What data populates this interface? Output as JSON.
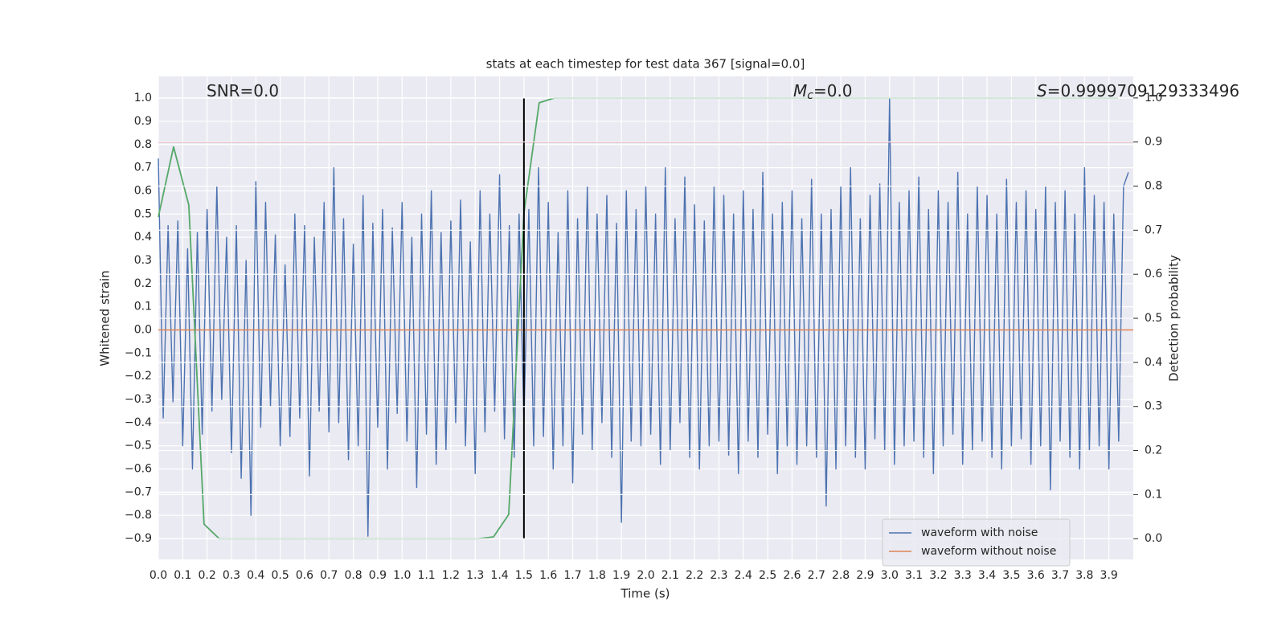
{
  "chart_data": {
    "type": "line",
    "title": "stats at each timestep for test data 367 [signal=0.0]",
    "xlabel": "Time (s)",
    "ylabel": "Whitened strain",
    "y2label": "Detection probability",
    "xlim": [
      0,
      4.0
    ],
    "ylim": [
      -0.99,
      1.094
    ],
    "y2lim": [
      -0.047,
      1.049
    ],
    "grid": true,
    "legend": "lower right",
    "xticks": [
      {
        "value": 0,
        "label": "0.0"
      },
      0.1,
      0.2,
      0.3,
      0.4,
      0.5,
      0.6,
      0.7,
      0.8,
      0.9,
      {
        "value": 1,
        "label": "1.0"
      },
      1.1,
      1.2,
      1.3,
      1.4,
      1.5,
      1.6,
      1.7,
      1.8,
      1.9,
      {
        "value": 2,
        "label": "2.0"
      },
      2.1,
      2.2,
      2.3,
      2.4,
      2.5,
      2.6,
      2.7,
      2.8,
      2.9,
      {
        "value": 3,
        "label": "3.0"
      },
      3.1,
      3.2,
      3.3,
      3.4,
      3.5,
      3.6,
      3.7,
      3.8,
      3.9
    ],
    "yticks": [
      {
        "value": -0.9,
        "label": "−0.9"
      },
      {
        "value": -0.8,
        "label": "−0.8"
      },
      {
        "value": -0.7,
        "label": "−0.7"
      },
      {
        "value": -0.6,
        "label": "−0.6"
      },
      {
        "value": -0.5,
        "label": "−0.5"
      },
      {
        "value": -0.4,
        "label": "−0.4"
      },
      {
        "value": -0.3,
        "label": "−0.3"
      },
      {
        "value": -0.2,
        "label": "−0.2"
      },
      {
        "value": -0.1,
        "label": "−0.1"
      },
      {
        "value": 0,
        "label": "0.0"
      },
      0.1,
      0.2,
      0.3,
      0.4,
      0.5,
      0.6,
      0.7,
      0.8,
      0.9,
      {
        "value": 1,
        "label": "1.0"
      }
    ],
    "y2ticks": [
      {
        "value": 0,
        "label": "0.0"
      },
      0.1,
      0.2,
      0.3,
      0.4,
      0.5,
      0.6,
      0.7,
      0.8,
      0.9,
      {
        "value": 1,
        "label": "1.0"
      }
    ],
    "annotations": [
      {
        "text": "SNR=0.0"
      },
      {
        "symbol": "M",
        "subscript": "c",
        "text": "=0.0"
      },
      {
        "symbol": "S",
        "text": "=0.9999709129333496"
      }
    ],
    "hlines": [
      {
        "y": 0.9,
        "axis": "y2",
        "color": "#c44e52"
      }
    ],
    "vlines": [
      {
        "x": 1.5,
        "ymin": 0,
        "ymax": 1,
        "axis": "y2",
        "color": "#000000"
      }
    ],
    "series": [
      {
        "name": "waveform with noise",
        "color": "#4c72b0",
        "x": [
          0,
          0.02,
          0.04,
          0.06,
          0.08,
          0.1,
          0.12,
          0.14,
          0.16,
          0.18,
          0.2,
          0.22,
          0.24,
          0.26,
          0.28,
          0.3,
          0.32,
          0.34,
          0.36,
          0.38,
          0.4,
          0.42,
          0.44,
          0.46,
          0.48,
          0.5,
          0.52,
          0.54,
          0.56,
          0.58,
          0.6,
          0.62,
          0.64,
          0.66,
          0.68,
          0.7,
          0.72,
          0.74,
          0.76,
          0.78,
          0.8,
          0.82,
          0.84,
          0.86,
          0.88,
          0.9,
          0.92,
          0.94,
          0.96,
          0.98,
          1,
          1.02,
          1.04,
          1.06,
          1.08,
          1.1,
          1.12,
          1.14,
          1.16,
          1.18,
          1.2,
          1.22,
          1.24,
          1.26,
          1.28,
          1.3,
          1.32,
          1.34,
          1.36,
          1.38,
          1.4,
          1.42,
          1.44,
          1.46,
          1.48,
          1.5,
          1.52,
          1.54,
          1.56,
          1.58,
          1.6,
          1.62,
          1.64,
          1.66,
          1.68,
          1.7,
          1.72,
          1.74,
          1.76,
          1.78,
          1.8,
          1.82,
          1.84,
          1.86,
          1.88,
          1.9,
          1.92,
          1.94,
          1.96,
          1.98,
          2,
          2.02,
          2.04,
          2.06,
          2.08,
          2.1,
          2.12,
          2.14,
          2.16,
          2.18,
          2.2,
          2.22,
          2.24,
          2.26,
          2.28,
          2.3,
          2.32,
          2.34,
          2.36,
          2.38,
          2.4,
          2.42,
          2.44,
          2.46,
          2.48,
          2.5,
          2.52,
          2.54,
          2.56,
          2.58,
          2.6,
          2.62,
          2.64,
          2.66,
          2.68,
          2.7,
          2.72,
          2.74,
          2.76,
          2.78,
          2.8,
          2.82,
          2.84,
          2.86,
          2.88,
          2.9,
          2.92,
          2.94,
          2.96,
          2.98,
          3,
          3.02,
          3.04,
          3.06,
          3.08,
          3.1,
          3.12,
          3.14,
          3.16,
          3.18,
          3.2,
          3.22,
          3.24,
          3.26,
          3.28,
          3.3,
          3.32,
          3.34,
          3.36,
          3.38,
          3.4,
          3.42,
          3.44,
          3.46,
          3.48,
          3.5,
          3.52,
          3.54,
          3.56,
          3.58,
          3.6,
          3.62,
          3.64,
          3.66,
          3.68,
          3.7,
          3.72,
          3.74,
          3.76,
          3.78,
          3.8,
          3.82,
          3.84,
          3.86,
          3.88,
          3.9,
          3.92,
          3.94,
          3.96,
          3.98
        ],
        "values": [
          0.74,
          -0.38,
          0.45,
          -0.31,
          0.47,
          -0.5,
          0.35,
          -0.6,
          0.42,
          -0.45,
          0.52,
          -0.35,
          0.62,
          -0.3,
          0.4,
          -0.53,
          0.45,
          -0.64,
          0.3,
          -0.8,
          0.64,
          -0.42,
          0.55,
          -0.33,
          0.41,
          -0.5,
          0.28,
          -0.46,
          0.5,
          -0.38,
          0.45,
          -0.63,
          0.4,
          -0.35,
          0.55,
          -0.44,
          0.7,
          -0.4,
          0.48,
          -0.56,
          0.37,
          -0.5,
          0.58,
          -0.89,
          0.46,
          -0.42,
          0.52,
          -0.6,
          0.44,
          -0.36,
          0.55,
          -0.48,
          0.4,
          -0.68,
          0.5,
          -0.45,
          0.6,
          -0.58,
          0.42,
          -0.52,
          0.47,
          -0.4,
          0.56,
          -0.5,
          0.38,
          -0.62,
          0.6,
          -0.44,
          0.5,
          -0.35,
          0.67,
          -0.47,
          0.45,
          -0.55,
          0.5,
          -0.4,
          0.52,
          -0.5,
          0.7,
          -0.46,
          0.55,
          -0.6,
          0.42,
          -0.5,
          0.6,
          -0.66,
          0.48,
          -0.45,
          0.62,
          -0.52,
          0.5,
          -0.4,
          0.58,
          -0.55,
          0.46,
          -0.83,
          0.6,
          -0.48,
          0.52,
          -0.5,
          0.62,
          -0.45,
          0.5,
          -0.58,
          0.7,
          -0.52,
          0.48,
          -0.4,
          0.66,
          -0.55,
          0.54,
          -0.6,
          0.47,
          -0.5,
          0.62,
          -0.48,
          0.58,
          -0.54,
          0.5,
          -0.62,
          0.6,
          -0.48,
          0.52,
          -0.55,
          0.68,
          -0.45,
          0.5,
          -0.62,
          0.55,
          -0.5,
          0.6,
          -0.58,
          0.48,
          -0.5,
          0.65,
          -0.55,
          0.5,
          -0.76,
          0.52,
          -0.6,
          0.62,
          -0.5,
          0.7,
          -0.55,
          0.48,
          -0.6,
          0.58,
          -0.47,
          0.63,
          -0.52,
          1.0,
          -0.58,
          0.55,
          -0.5,
          0.6,
          -0.48,
          0.66,
          -0.55,
          0.52,
          -0.62,
          0.6,
          -0.5,
          0.55,
          -0.45,
          0.68,
          -0.58,
          0.5,
          -0.52,
          0.62,
          -0.48,
          0.58,
          -0.55,
          0.5,
          -0.6,
          0.65,
          -0.5,
          0.55,
          -0.47,
          0.6,
          -0.58,
          0.52,
          -0.5,
          0.62,
          -0.69,
          0.55,
          -0.48,
          0.6,
          -0.55,
          0.5,
          -0.6,
          0.7,
          -0.52,
          0.58,
          -0.5,
          0.55,
          -0.6,
          0.5,
          -0.48,
          0.62,
          0.68
        ]
      },
      {
        "name": "waveform without noise",
        "color": "#dd8452",
        "x": [
          0,
          4.0
        ],
        "values": [
          0,
          0
        ]
      },
      {
        "color": "#55a868",
        "axis": "y2",
        "x": [
          0,
          0.0625,
          0.125,
          0.1875,
          0.25,
          1.3125,
          1.375,
          1.4375,
          1.5,
          1.5625,
          1.625,
          3.9375
        ],
        "values": [
          0.73,
          0.889,
          0.757,
          0.033,
          0.0,
          0.0,
          0.004,
          0.055,
          0.739,
          0.989,
          1.0,
          1.0
        ]
      }
    ]
  }
}
